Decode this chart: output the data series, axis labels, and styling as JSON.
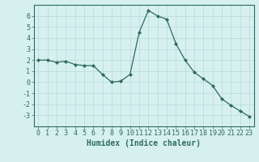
{
  "x": [
    0,
    1,
    2,
    3,
    4,
    5,
    6,
    7,
    8,
    9,
    10,
    11,
    12,
    13,
    14,
    15,
    16,
    17,
    18,
    19,
    20,
    21,
    22,
    23
  ],
  "y": [
    2.0,
    2.0,
    1.8,
    1.9,
    1.6,
    1.5,
    1.5,
    0.7,
    0.0,
    0.1,
    0.7,
    4.5,
    6.5,
    6.0,
    5.7,
    3.5,
    2.0,
    0.9,
    0.3,
    -0.3,
    -1.5,
    -2.1,
    -2.6,
    -3.1
  ],
  "line_color": "#2e6b5e",
  "marker": "D",
  "marker_size": 2,
  "bg_color": "#d6f0f0",
  "grid_color": "#b8d8d8",
  "xlabel": "Humidex (Indice chaleur)",
  "ylim": [
    -4,
    7
  ],
  "xlim": [
    -0.5,
    23.5
  ],
  "yticks": [
    -3,
    -2,
    -1,
    0,
    1,
    2,
    3,
    4,
    5,
    6
  ],
  "xticks": [
    0,
    1,
    2,
    3,
    4,
    5,
    6,
    7,
    8,
    9,
    10,
    11,
    12,
    13,
    14,
    15,
    16,
    17,
    18,
    19,
    20,
    21,
    22,
    23
  ],
  "tick_fontsize": 6,
  "xlabel_fontsize": 7,
  "axis_color": "#2e6b5e",
  "spine_color": "#2e6b5e"
}
